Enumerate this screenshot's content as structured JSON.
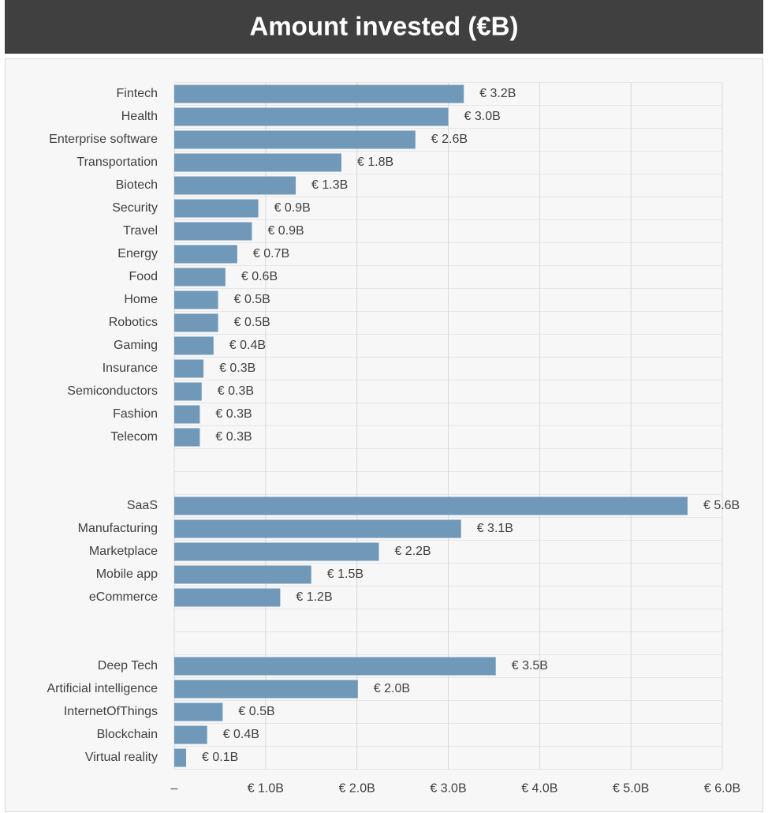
{
  "chart_data": {
    "type": "barh",
    "title": "Amount invested (€B)",
    "categories": [
      "Fintech",
      "Health",
      "Enterprise software",
      "Transportation",
      "Biotech",
      "Security",
      "Travel",
      "Energy",
      "Food",
      "Home",
      "Robotics",
      "Gaming",
      "Insurance",
      "Semiconductors",
      "Fashion",
      "Telecom",
      null,
      null,
      "SaaS",
      "Manufacturing",
      "Marketplace",
      "Mobile app",
      "eCommerce",
      null,
      null,
      "Deep Tech",
      "Artificial intelligence",
      "InternetOfThings",
      "Blockchain",
      "Virtual reality"
    ],
    "values": [
      3.17,
      3.0,
      2.64,
      1.83,
      1.33,
      0.92,
      0.85,
      0.69,
      0.56,
      0.48,
      0.48,
      0.43,
      0.32,
      0.3,
      0.28,
      0.28,
      null,
      null,
      5.62,
      3.14,
      2.24,
      1.5,
      1.16,
      null,
      null,
      3.52,
      2.01,
      0.53,
      0.36,
      0.13
    ],
    "value_labels": [
      "€ 3.2B",
      "€ 3.0B",
      "€ 2.6B",
      "€ 1.8B",
      "€ 1.3B",
      "€ 0.9B",
      "€ 0.9B",
      "€ 0.7B",
      "€ 0.6B",
      "€ 0.5B",
      "€ 0.5B",
      "€ 0.4B",
      "€ 0.3B",
      "€ 0.3B",
      "€ 0.3B",
      "€ 0.3B",
      null,
      null,
      "€ 5.6B",
      "€ 3.1B",
      "€ 2.2B",
      "€ 1.5B",
      "€ 1.2B",
      null,
      null,
      "€ 3.5B",
      "€ 2.0B",
      "€ 0.5B",
      "€ 0.4B",
      "€ 0.1B"
    ],
    "color": "#7098b8",
    "xlim": [
      0,
      6
    ],
    "xticks": [
      {
        "value": 0,
        "label": "–"
      },
      {
        "value": 1,
        "label": "€ 1.0B"
      },
      {
        "value": 2,
        "label": "€ 2.0B"
      },
      {
        "value": 3,
        "label": "€ 3.0B"
      },
      {
        "value": 4,
        "label": "€ 4.0B"
      },
      {
        "value": 5,
        "label": "€ 5.0B"
      },
      {
        "value": 6,
        "label": "€ 6.0B"
      }
    ],
    "grid": true
  }
}
